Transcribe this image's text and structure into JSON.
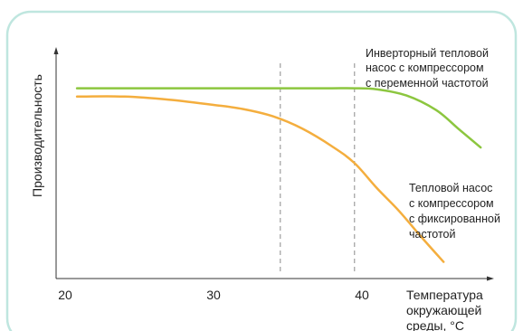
{
  "chart_data": {
    "type": "line",
    "ylabel": "Производительность",
    "xlabel_lines": [
      "Температура",
      "окружающей",
      "среды, °C"
    ],
    "x_ticks": [
      20,
      30,
      40
    ],
    "xlim": [
      20,
      49
    ],
    "ylim": [
      0,
      100
    ],
    "grid": false,
    "vlines": [
      34.5,
      39.5
    ],
    "series": [
      {
        "name_lines": [
          "Инверторный тепловой",
          "насос с компрессором",
          "с переменной частотой"
        ],
        "color": "#8cc63f",
        "x": [
          20.8,
          24,
          28,
          32,
          36,
          38,
          39.5,
          41,
          43,
          45,
          46.5,
          48
        ],
        "y": [
          91.5,
          91.5,
          91.5,
          91.5,
          91.5,
          91.5,
          91.5,
          91,
          88,
          81,
          72,
          63
        ]
      },
      {
        "name_lines": [
          "Тепловой насос",
          "с компрессором",
          "с фиксированной",
          "частотой"
        ],
        "color": "#f4ae3e",
        "x": [
          20.8,
          24,
          27,
          30,
          32,
          34,
          36,
          38,
          39.5,
          41,
          42.5,
          44,
          45.5
        ],
        "y": [
          87.5,
          87.5,
          86,
          83.5,
          81.5,
          78,
          72,
          63.5,
          55.5,
          43.5,
          32.5,
          20,
          8
        ]
      }
    ]
  },
  "frame": {
    "border_color": "#bfe6df"
  }
}
